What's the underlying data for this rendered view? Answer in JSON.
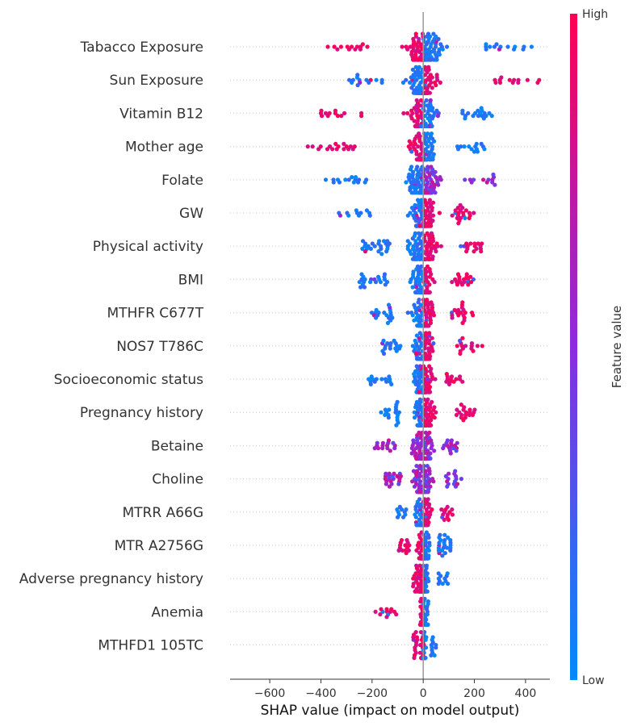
{
  "chart_data": {
    "type": "scatter",
    "subtype": "shap-beeswarm-summary",
    "xlabel": "SHAP value (impact on model output)",
    "xlim": [
      -755,
      495
    ],
    "x_ticks": [
      -600,
      -400,
      -200,
      0,
      200,
      400
    ],
    "x_tick_labels": [
      "−600",
      "−400",
      "−200",
      "0",
      "200",
      "400"
    ],
    "colorbar": {
      "title": "Feature value",
      "high_label": "High",
      "low_label": "Low",
      "low_color": "#008bfb",
      "mid_color": "#8a2be2",
      "high_color": "#ff0052"
    },
    "features": [
      {
        "name": "Tabacco Exposure",
        "min": -390,
        "max": 440,
        "neg_color": "high",
        "pos_color": "low",
        "spread": 150
      },
      {
        "name": "Sun Exposure",
        "min": -290,
        "max": 460,
        "neg_color": "low",
        "pos_color": "high",
        "spread": 130
      },
      {
        "name": "Vitamin B12",
        "min": -410,
        "max": 270,
        "neg_color": "high",
        "pos_color": "low",
        "spread": 120
      },
      {
        "name": "Mother age",
        "min": -470,
        "max": 240,
        "neg_color": "high",
        "pos_color": "low",
        "spread": 110
      },
      {
        "name": "Folate",
        "min": -390,
        "max": 280,
        "neg_color": "low",
        "pos_color": "mixed",
        "spread": 130
      },
      {
        "name": "GW",
        "min": -370,
        "max": 200,
        "neg_color": "low",
        "pos_color": "high",
        "spread": 100
      },
      {
        "name": "Physical activity",
        "min": -240,
        "max": 250,
        "neg_color": "low",
        "pos_color": "high",
        "spread": 110
      },
      {
        "name": "BMI",
        "min": -250,
        "max": 200,
        "neg_color": "low",
        "pos_color": "high",
        "spread": 80
      },
      {
        "name": "MTHFR C677T",
        "min": -210,
        "max": 200,
        "neg_color": "low",
        "pos_color": "high",
        "spread": 90
      },
      {
        "name": "NOS7 T786C",
        "min": -160,
        "max": 240,
        "neg_color": "low",
        "pos_color": "high",
        "spread": 70
      },
      {
        "name": "Socioeconomic status",
        "min": -220,
        "max": 160,
        "neg_color": "low",
        "pos_color": "high",
        "spread": 70
      },
      {
        "name": "Pregnancy history",
        "min": -170,
        "max": 210,
        "neg_color": "low",
        "pos_color": "high",
        "spread": 80
      },
      {
        "name": "Betaine",
        "min": -190,
        "max": 140,
        "neg_color": "mixed",
        "pos_color": "mixed",
        "spread": 80
      },
      {
        "name": "Choline",
        "min": -150,
        "max": 150,
        "neg_color": "mixed",
        "pos_color": "mixed",
        "spread": 70
      },
      {
        "name": "MTRR A66G",
        "min": -120,
        "max": 120,
        "neg_color": "low",
        "pos_color": "high",
        "spread": 60
      },
      {
        "name": "MTR A2756G",
        "min": -100,
        "max": 110,
        "neg_color": "high",
        "pos_color": "low",
        "spread": 50
      },
      {
        "name": "Adverse pregnancy history",
        "min": -40,
        "max": 100,
        "neg_color": "high",
        "pos_color": "low",
        "spread": 40
      },
      {
        "name": "Anemia",
        "min": -190,
        "max": 20,
        "neg_color": "high",
        "pos_color": "low",
        "spread": 30
      },
      {
        "name": "MTHFD1 105TC",
        "min": -40,
        "max": 50,
        "neg_color": "high",
        "pos_color": "low",
        "spread": 20
      }
    ]
  }
}
